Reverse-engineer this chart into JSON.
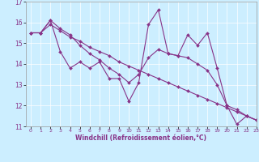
{
  "xlabel": "Windchill (Refroidissement éolien,°C)",
  "background_color": "#cceeff",
  "line_color": "#883388",
  "x_hours": [
    0,
    1,
    2,
    3,
    4,
    5,
    6,
    7,
    8,
    9,
    10,
    11,
    12,
    13,
    14,
    15,
    16,
    17,
    18,
    19,
    20,
    21,
    22,
    23
  ],
  "y_main": [
    15.5,
    15.5,
    16.1,
    14.6,
    13.8,
    14.1,
    13.8,
    14.1,
    13.3,
    13.3,
    12.2,
    13.1,
    15.9,
    16.6,
    14.5,
    14.4,
    15.4,
    14.9,
    15.5,
    13.8,
    12.0,
    11.1,
    11.5,
    11.3
  ],
  "y_line1": [
    15.5,
    15.5,
    15.9,
    15.6,
    15.3,
    15.1,
    14.8,
    14.6,
    14.4,
    14.1,
    13.9,
    13.7,
    13.5,
    13.3,
    13.1,
    12.9,
    12.7,
    12.5,
    12.3,
    12.1,
    11.9,
    11.7,
    11.5,
    11.3
  ],
  "y_line2": [
    15.5,
    15.5,
    16.1,
    15.7,
    15.4,
    14.9,
    14.5,
    14.2,
    13.8,
    13.5,
    13.1,
    13.5,
    14.3,
    14.7,
    14.5,
    14.4,
    14.3,
    14.0,
    13.7,
    13.0,
    12.0,
    11.8,
    11.5,
    11.3
  ],
  "ylim": [
    11,
    17
  ],
  "xlim": [
    -0.5,
    23
  ],
  "yticks": [
    11,
    12,
    13,
    14,
    15,
    16,
    17
  ],
  "xticks": [
    0,
    1,
    2,
    3,
    4,
    5,
    6,
    7,
    8,
    9,
    10,
    11,
    12,
    13,
    14,
    15,
    16,
    17,
    18,
    19,
    20,
    21,
    22,
    23
  ]
}
